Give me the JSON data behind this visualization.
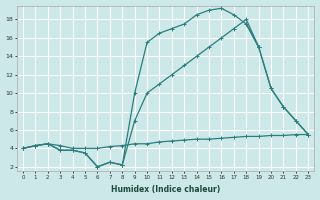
{
  "xlabel": "Humidex (Indice chaleur)",
  "bg_color": "#cce8e8",
  "grid_color": "#b8d8d8",
  "line_color": "#2d7d7d",
  "xmin": -0.5,
  "xmax": 23.5,
  "ymin": 1.5,
  "ymax": 19.5,
  "yticks": [
    2,
    4,
    6,
    8,
    10,
    12,
    14,
    16,
    18
  ],
  "xticks": [
    0,
    1,
    2,
    3,
    4,
    5,
    6,
    7,
    8,
    9,
    10,
    11,
    12,
    13,
    14,
    15,
    16,
    17,
    18,
    19,
    20,
    21,
    22,
    23
  ],
  "lines": [
    {
      "x": [
        0,
        1,
        2,
        3,
        4,
        5,
        6,
        7,
        8,
        9,
        10,
        11,
        12,
        13,
        14,
        15,
        16,
        17,
        18,
        19,
        20,
        21,
        22,
        23
      ],
      "y": [
        4.0,
        4.3,
        4.5,
        4.3,
        4.0,
        4.0,
        4.0,
        4.2,
        4.3,
        4.5,
        4.5,
        4.7,
        4.8,
        4.9,
        5.0,
        5.0,
        5.1,
        5.2,
        5.3,
        5.3,
        5.4,
        5.4,
        5.5,
        5.5
      ]
    },
    {
      "x": [
        0,
        1,
        2,
        3,
        4,
        5,
        6,
        7,
        8
      ],
      "y": [
        4.0,
        4.3,
        4.5,
        3.8,
        3.8,
        3.5,
        2.0,
        2.5,
        2.2
      ]
    },
    {
      "x": [
        8,
        9,
        10,
        11,
        12,
        13,
        14,
        15,
        16,
        17,
        18,
        19,
        20,
        21,
        22,
        23
      ],
      "y": [
        2.2,
        7.0,
        10.0,
        11.0,
        12.0,
        13.0,
        14.0,
        15.0,
        16.0,
        17.0,
        18.0,
        15.0,
        10.5,
        8.5,
        7.0,
        5.5
      ]
    },
    {
      "x": [
        0,
        1,
        2,
        3,
        4,
        5,
        6,
        7,
        8,
        9,
        10,
        11,
        12,
        13,
        14,
        15,
        16,
        17,
        18,
        19
      ],
      "y": [
        4.0,
        4.3,
        4.5,
        3.8,
        3.8,
        3.5,
        2.0,
        2.5,
        2.2,
        10.0,
        15.5,
        16.5,
        17.0,
        17.5,
        18.5,
        19.0,
        19.2,
        18.5,
        17.5,
        15.0
      ]
    },
    {
      "x": [
        18,
        19,
        20,
        21,
        22,
        23
      ],
      "y": [
        17.5,
        15.0,
        10.5,
        8.5,
        7.0,
        5.5
      ]
    }
  ]
}
